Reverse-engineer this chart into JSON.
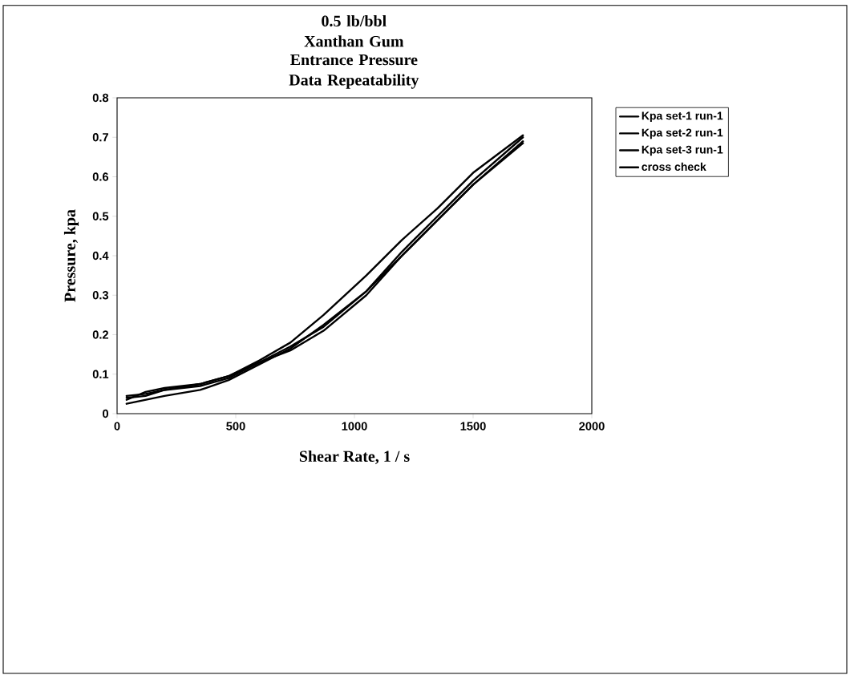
{
  "chart_data": {
    "type": "line",
    "title": "0.5 lb/bbl Xanthan Gum",
    "subtitle": "Entrance Pressure Data Repeatability",
    "xlabel": "Shear Rate, 1 / s",
    "ylabel": "Pressure, kpa",
    "xlim": [
      0,
      2000
    ],
    "xticks": [
      0,
      500,
      1000,
      1500,
      2000
    ],
    "ylim": [
      0,
      0.8
    ],
    "yticks": [
      0,
      0.1,
      0.2,
      0.3,
      0.4,
      0.5,
      0.6,
      0.7,
      0.8
    ],
    "x": [
      40,
      120,
      200,
      350,
      470,
      600,
      730,
      870,
      1050,
      1200,
      1350,
      1500,
      1710
    ],
    "series": [
      {
        "name": "Kpa set-1 run-1",
        "color": "#000000",
        "values": [
          0.045,
          0.05,
          0.06,
          0.075,
          0.095,
          0.13,
          0.17,
          0.22,
          0.31,
          0.41,
          0.5,
          0.59,
          0.7
        ]
      },
      {
        "name": "Kpa set-2 run-1",
        "color": "#000000",
        "values": [
          0.025,
          0.035,
          0.045,
          0.06,
          0.085,
          0.125,
          0.165,
          0.225,
          0.31,
          0.4,
          0.49,
          0.58,
          0.69
        ]
      },
      {
        "name": "Kpa set-3 run-1",
        "color": "#000000",
        "values": [
          0.035,
          0.055,
          0.065,
          0.075,
          0.095,
          0.135,
          0.18,
          0.25,
          0.35,
          0.44,
          0.52,
          0.61,
          0.705
        ]
      },
      {
        "name": "cross check",
        "color": "#000000",
        "values": [
          0.04,
          0.045,
          0.06,
          0.07,
          0.09,
          0.13,
          0.16,
          0.21,
          0.3,
          0.4,
          0.49,
          0.58,
          0.685
        ]
      }
    ],
    "legend": "right",
    "grid": false,
    "marker": "none",
    "line_style": "solid"
  }
}
